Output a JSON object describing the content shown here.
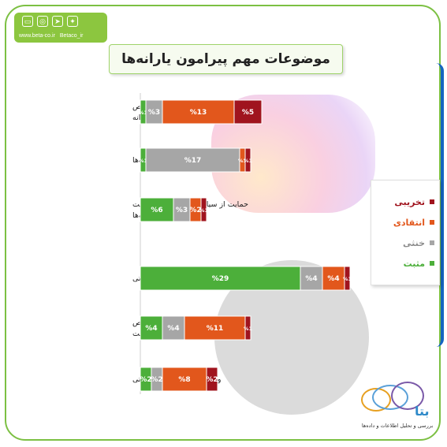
{
  "header": {
    "website": "www.beta-co.ir",
    "handle": "Betaco_ir"
  },
  "brand": {
    "name": "بتا",
    "tagline": "بررسی و تحلیل اطلاعات و داده‌ها"
  },
  "colors": {
    "destructive": "#a0141e",
    "critical": "#e2571c",
    "neutral": "#a6a6a6",
    "positive": "#4caf3a",
    "frame": "#7cc043"
  },
  "chart_data": {
    "type": "bar",
    "orientation": "horizontal-stacked",
    "title": "موضوعات مهم پیرامون یارانه‌ها",
    "legend_position": "right",
    "series": [
      {
        "name": "تخریبی",
        "color": "#a0141e"
      },
      {
        "name": "انتقادی",
        "color": "#e2571c"
      },
      {
        "name": "خنثی",
        "color": "#a6a6a6"
      },
      {
        "name": "مثبت",
        "color": "#4caf3a"
      }
    ],
    "categories": [
      "واکنش به تغییر سیاست تخصیص یارانه",
      "خبرواریز یارانه‌ها",
      "حمایت از سیاست تغییر نظام پرداخت یارانه‌ها",
      "سیاست افزایش یارانه معیشتی",
      "واکنش به تغییر سیاست تخصیص یارانه دولت",
      "واکنش به نرخ یارانه پرداختی"
    ],
    "rows": [
      {
        "positive": 1,
        "neutral": 3,
        "critical": 13,
        "destructive": 5,
        "labels": {
          "positive": "%1",
          "neutral": "%3",
          "critical": "%13",
          "destructive": "%5"
        }
      },
      {
        "positive": 1,
        "neutral": 17,
        "critical": 1,
        "destructive": 1,
        "labels": {
          "positive": "%1",
          "neutral": "%17",
          "critical": "%1",
          "destructive": "%1"
        }
      },
      {
        "positive": 6,
        "neutral": 3,
        "critical": 2,
        "destructive": 1,
        "labels": {
          "positive": "%6",
          "neutral": "%3",
          "critical": "%2",
          "destructive": "%1"
        }
      },
      {
        "positive": 29,
        "neutral": 4,
        "critical": 4,
        "destructive": 1,
        "labels": {
          "positive": "%29",
          "neutral": "%4",
          "critical": "%4",
          "destructive": "%1"
        }
      },
      {
        "positive": 4,
        "neutral": 4,
        "critical": 11,
        "destructive": 1,
        "labels": {
          "positive": "%4",
          "neutral": "%4",
          "critical": "%11",
          "destructive": "%1"
        }
      },
      {
        "positive": 2,
        "neutral": 2,
        "critical": 8,
        "destructive": 2,
        "labels": {
          "positive": "%2",
          "neutral": "%2",
          "critical": "%8",
          "destructive": "%2"
        }
      }
    ]
  }
}
